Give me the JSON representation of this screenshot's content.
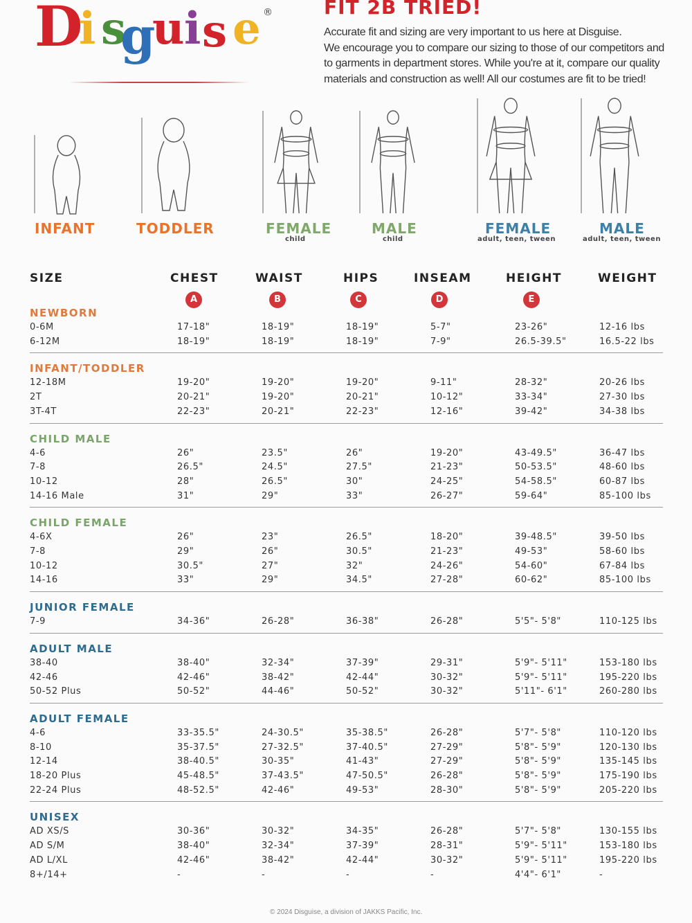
{
  "brand": {
    "logo_letters": [
      "D",
      "i",
      "s",
      "g",
      "u",
      "i",
      "s",
      "e"
    ],
    "logo_colors": [
      "#d2232a",
      "#f0b323",
      "#4a8f3c",
      "#2f6fb5",
      "#d2232a",
      "#8a3f96",
      "#d2232a",
      "#f0b323"
    ],
    "registered_mark": "®"
  },
  "header": {
    "title": "FIT 2B TRIED!",
    "intro_lines": [
      "Accurate fit and sizing are very important to us here at Disguise.",
      "We encourage you to compare our sizing to those of our competitors and",
      "to garments in department stores. While you're at it, compare our quality",
      "materials and construction as well! All our costumes are fit to be tried!"
    ]
  },
  "figures": [
    {
      "label": "INFANT",
      "sub": "",
      "color": "#e8742c"
    },
    {
      "label": "TODDLER",
      "sub": "",
      "color": "#e8742c"
    },
    {
      "label": "FEMALE",
      "sub": "child",
      "color": "#7fa86a"
    },
    {
      "label": "MALE",
      "sub": "child",
      "color": "#7fa86a"
    },
    {
      "label": "FEMALE",
      "sub": "adult, teen, tween",
      "color": "#3d7fa6"
    },
    {
      "label": "MALE",
      "sub": "adult, teen, tween",
      "color": "#3d7fa6"
    }
  ],
  "table": {
    "columns": [
      "SIZE",
      "CHEST",
      "WAIST",
      "HIPS",
      "INSEAM",
      "HEIGHT",
      "WEIGHT"
    ],
    "markers": [
      "A",
      "B",
      "C",
      "D",
      "E"
    ],
    "groups": [
      {
        "name": "NEWBORN",
        "color": "#e07a3a",
        "rows": [
          [
            "0-6M",
            "17-18\"",
            "18-19\"",
            "18-19\"",
            "5-7\"",
            "23-26\"",
            "12-16 lbs"
          ],
          [
            "6-12M",
            "18-19\"",
            "18-19\"",
            "18-19\"",
            "7-9\"",
            "26.5-39.5\"",
            "16.5-22 lbs"
          ]
        ]
      },
      {
        "name": "INFANT/TODDLER",
        "color": "#e07a3a",
        "rows": [
          [
            "12-18M",
            "19-20\"",
            "19-20\"",
            "19-20\"",
            "9-11\"",
            "28-32\"",
            "20-26 lbs"
          ],
          [
            "2T",
            "20-21\"",
            "19-20\"",
            "20-21\"",
            "10-12\"",
            "33-34\"",
            "27-30 lbs"
          ],
          [
            "3T-4T",
            "22-23\"",
            "20-21\"",
            "22-23\"",
            "12-16\"",
            "39-42\"",
            "34-38 lbs"
          ]
        ]
      },
      {
        "name": "CHILD MALE",
        "color": "#7aa56a",
        "rows": [
          [
            "4-6",
            "26\"",
            "23.5\"",
            "26\"",
            "19-20\"",
            "43-49.5\"",
            "36-47 lbs"
          ],
          [
            "7-8",
            "26.5\"",
            "24.5\"",
            "27.5\"",
            "21-23\"",
            "50-53.5\"",
            "48-60 lbs"
          ],
          [
            "10-12",
            "28\"",
            "26.5\"",
            "30\"",
            "24-25\"",
            "54-58.5\"",
            "60-87 lbs"
          ],
          [
            "14-16 Male",
            "31\"",
            "29\"",
            "33\"",
            "26-27\"",
            "59-64\"",
            "85-100 lbs"
          ]
        ]
      },
      {
        "name": "CHILD FEMALE",
        "color": "#7aa56a",
        "rows": [
          [
            "4-6X",
            "26\"",
            "23\"",
            "26.5\"",
            "18-20\"",
            "39-48.5\"",
            "39-50 lbs"
          ],
          [
            "7-8",
            "29\"",
            "26\"",
            "30.5\"",
            "21-23\"",
            "49-53\"",
            "58-60 lbs"
          ],
          [
            "10-12",
            "30.5\"",
            "27\"",
            "32\"",
            "24-26\"",
            "54-60\"",
            "67-84 lbs"
          ],
          [
            "14-16",
            "33\"",
            "29\"",
            "34.5\"",
            "27-28\"",
            "60-62\"",
            "85-100 lbs"
          ]
        ]
      },
      {
        "name": "JUNIOR FEMALE",
        "color": "#2d6b8f",
        "rows": [
          [
            "7-9",
            "34-36\"",
            "26-28\"",
            "36-38\"",
            "26-28\"",
            "5'5\"- 5'8\"",
            "110-125 lbs"
          ]
        ]
      },
      {
        "name": "ADULT MALE",
        "color": "#2d6b8f",
        "rows": [
          [
            "38-40",
            "38-40\"",
            "32-34\"",
            "37-39\"",
            "29-31\"",
            "5'9\"- 5'11\"",
            "153-180 lbs"
          ],
          [
            "42-46",
            "42-46\"",
            "38-42\"",
            "42-44\"",
            "30-32\"",
            "5'9\"- 5'11\"",
            "195-220 lbs"
          ],
          [
            "50-52 Plus",
            "50-52\"",
            "44-46\"",
            "50-52\"",
            "30-32\"",
            "5'11\"- 6'1\"",
            "260-280 lbs"
          ]
        ]
      },
      {
        "name": "ADULT FEMALE",
        "color": "#2d6b8f",
        "rows": [
          [
            "4-6",
            "33-35.5\"",
            "24-30.5\"",
            "35-38.5\"",
            "26-28\"",
            "5'7\"- 5'8\"",
            "110-120 lbs"
          ],
          [
            "8-10",
            "35-37.5\"",
            "27-32.5\"",
            "37-40.5\"",
            "27-29\"",
            "5'8\"- 5'9\"",
            "120-130 lbs"
          ],
          [
            "12-14",
            "38-40.5\"",
            "30-35\"",
            "41-43\"",
            "27-29\"",
            "5'8\"- 5'9\"",
            "135-145 lbs"
          ],
          [
            "18-20 Plus",
            "45-48.5\"",
            "37-43.5\"",
            "47-50.5\"",
            "26-28\"",
            "5'8\"- 5'9\"",
            "175-190 lbs"
          ],
          [
            "22-24 Plus",
            "48-52.5\"",
            "42-46\"",
            "49-53\"",
            "28-30\"",
            "5'8\"- 5'9\"",
            "205-220 lbs"
          ]
        ]
      },
      {
        "name": "UNISEX",
        "color": "#2d6b8f",
        "rows": [
          [
            "AD XS/S",
            "30-36\"",
            "30-32\"",
            "34-35\"",
            "26-28\"",
            "5'7\"- 5'8\"",
            "130-155 lbs"
          ],
          [
            "AD S/M",
            "38-40\"",
            "32-34\"",
            "37-39\"",
            "28-31\"",
            "5'9\"- 5'11\"",
            "153-180 lbs"
          ],
          [
            "AD L/XL",
            "42-46\"",
            "38-42\"",
            "42-44\"",
            "30-32\"",
            "5'9\"- 5'11\"",
            "195-220 lbs"
          ],
          [
            "8+/14+",
            "-",
            "-",
            "-",
            "-",
            "4'4\"- 6'1\"",
            "-"
          ]
        ]
      }
    ]
  },
  "footer": "© 2024 Disguise, a division of JAKKS Pacific, Inc."
}
